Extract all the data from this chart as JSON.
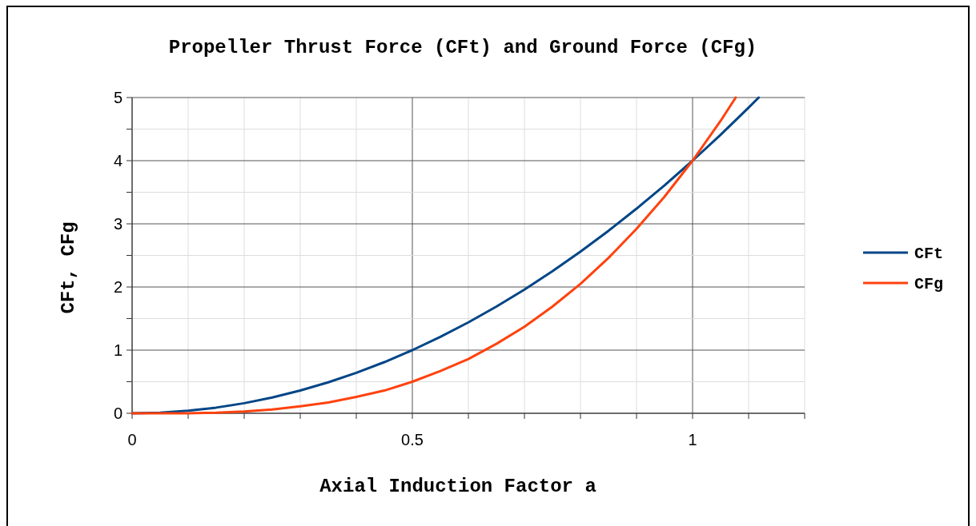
{
  "chart_data": {
    "type": "line",
    "title": "Propeller Thrust Force (CFt) and Ground Force (CFg)",
    "xlabel": "Axial Induction Factor a",
    "ylabel": "CFt, CFg",
    "xlim": [
      0,
      1.2
    ],
    "ylim": [
      0,
      5
    ],
    "xticks": [
      0,
      {
        "value": 0.1,
        "label": null
      },
      {
        "value": 0.2,
        "label": null
      },
      {
        "value": 0.3,
        "label": null
      },
      {
        "value": 0.4,
        "label": null
      },
      0.5,
      {
        "value": 0.6,
        "label": null
      },
      {
        "value": 0.7,
        "label": null
      },
      {
        "value": 0.8,
        "label": null
      },
      {
        "value": 0.9,
        "label": null
      },
      1,
      {
        "value": 1.1,
        "label": null
      },
      {
        "value": 1.2,
        "label": null
      }
    ],
    "yticks": [
      0,
      {
        "value": 0.5,
        "label": null
      },
      1,
      {
        "value": 1.5,
        "label": null
      },
      2,
      {
        "value": 2.5,
        "label": null
      },
      3,
      {
        "value": 3.5,
        "label": null
      },
      4,
      {
        "value": 4.5,
        "label": null
      },
      5
    ],
    "grid": true,
    "legend": "right",
    "marker": "none",
    "line_style": "solid",
    "series": [
      {
        "name": "CFt",
        "color": "#004586",
        "x": [
          0,
          0.05,
          0.1,
          0.15,
          0.2,
          0.25,
          0.3,
          0.35,
          0.4,
          0.45,
          0.5,
          0.55,
          0.6,
          0.65,
          0.7,
          0.75,
          0.8,
          0.85,
          0.9,
          0.95,
          1,
          1.05,
          1.1,
          1.118
        ],
        "values": [
          0,
          0.01,
          0.04,
          0.09,
          0.16,
          0.25,
          0.36,
          0.49,
          0.64,
          0.81,
          1,
          1.21,
          1.44,
          1.69,
          1.96,
          2.25,
          2.56,
          2.89,
          3.24,
          3.61,
          4,
          4.41,
          4.84,
          5
        ]
      },
      {
        "name": "CFg",
        "color": "#ff420e",
        "x": [
          0,
          0.05,
          0.1,
          0.15,
          0.2,
          0.25,
          0.3,
          0.35,
          0.4,
          0.45,
          0.5,
          0.55,
          0.6,
          0.65,
          0.7,
          0.75,
          0.8,
          0.85,
          0.9,
          0.95,
          1,
          1.05,
          1.077
        ],
        "values": [
          0,
          0,
          0,
          0.01,
          0.03,
          0.06,
          0.11,
          0.17,
          0.26,
          0.36,
          0.5,
          0.67,
          0.86,
          1.1,
          1.37,
          1.69,
          2.05,
          2.46,
          2.92,
          3.43,
          4,
          4.63,
          5
        ]
      }
    ]
  }
}
